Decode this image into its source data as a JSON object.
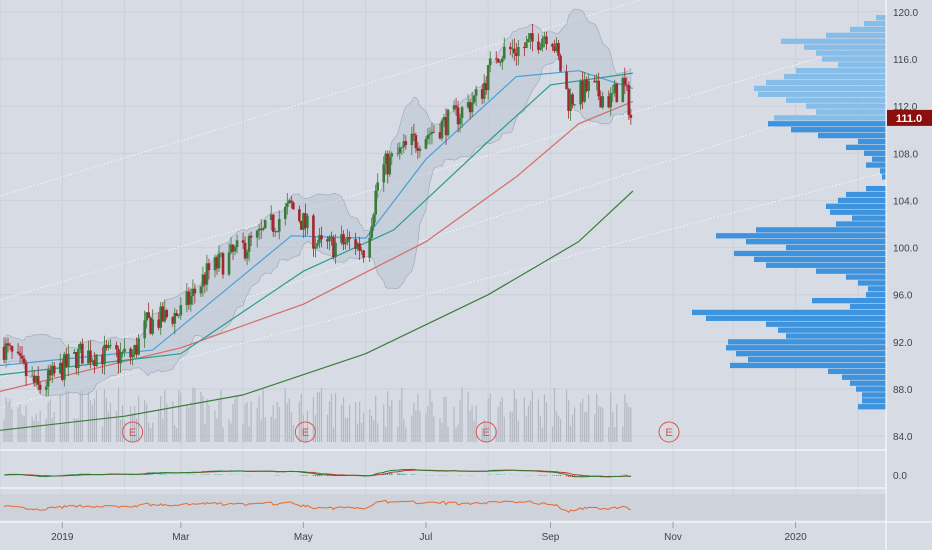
{
  "chart_data": {
    "type": "candlestick",
    "price_axis": {
      "ticks": [
        "84.0",
        "88.0",
        "92.0",
        "96.0",
        "100.0",
        "104.0",
        "108.0",
        "112.0",
        "116.0",
        "120.0"
      ],
      "range": [
        83,
        121
      ]
    },
    "last_price": {
      "label": "111.0",
      "value": 111.0,
      "color": "#8b0f0f"
    },
    "x_axis": {
      "labels": [
        "2019",
        "Mar",
        "May",
        "Jul",
        "Sep",
        "Nov",
        "2020"
      ],
      "range": [
        "2018-12-01",
        "2020-02-15"
      ]
    },
    "earnings_markers": {
      "label": "E",
      "dates": [
        "2019-02-05",
        "2019-05-02",
        "2019-07-31",
        "2019-10-30"
      ]
    },
    "price_anchors": [
      {
        "date": "2018-12-01",
        "close": 92.0
      },
      {
        "date": "2018-12-20",
        "close": 88.0
      },
      {
        "date": "2019-01-10",
        "close": 91.0
      },
      {
        "date": "2019-02-05",
        "close": 90.8
      },
      {
        "date": "2019-02-12",
        "close": 93.5
      },
      {
        "date": "2019-03-01",
        "close": 94.5
      },
      {
        "date": "2019-03-15",
        "close": 98.0
      },
      {
        "date": "2019-04-10",
        "close": 101.0
      },
      {
        "date": "2019-04-25",
        "close": 103.5
      },
      {
        "date": "2019-05-10",
        "close": 100.0
      },
      {
        "date": "2019-05-25",
        "close": 100.5
      },
      {
        "date": "2019-06-01",
        "close": 99.8
      },
      {
        "date": "2019-06-08",
        "close": 106.5
      },
      {
        "date": "2019-06-25",
        "close": 109.0
      },
      {
        "date": "2019-07-15",
        "close": 111.0
      },
      {
        "date": "2019-07-28",
        "close": 113.0
      },
      {
        "date": "2019-08-05",
        "close": 116.5
      },
      {
        "date": "2019-08-20",
        "close": 117.0
      },
      {
        "date": "2019-09-01",
        "close": 118.5
      },
      {
        "date": "2019-09-10",
        "close": 112.5
      },
      {
        "date": "2019-09-20",
        "close": 113.5
      },
      {
        "date": "2019-10-01",
        "close": 112.5
      },
      {
        "date": "2019-10-07",
        "close": 114.0
      },
      {
        "date": "2019-10-12",
        "close": 111.0
      }
    ],
    "moving_averages": [
      {
        "color": "#d66a6a",
        "points": [
          [
            "2018-12-01",
            87.8
          ],
          [
            "2019-03-01",
            91.5
          ],
          [
            "2019-05-01",
            95.2
          ],
          [
            "2019-07-01",
            100.5
          ],
          [
            "2019-08-15",
            106.0
          ],
          [
            "2019-09-15",
            110.5
          ],
          [
            "2019-10-12",
            112.4
          ]
        ]
      },
      {
        "color": "#3e7d3e",
        "points": [
          [
            "2018-12-01",
            84.5
          ],
          [
            "2019-02-01",
            85.7
          ],
          [
            "2019-04-01",
            87.5
          ],
          [
            "2019-06-01",
            91.0
          ],
          [
            "2019-08-01",
            96.0
          ],
          [
            "2019-09-15",
            100.5
          ],
          [
            "2019-10-12",
            104.8
          ]
        ]
      },
      {
        "color": "#4aa0d8",
        "points": [
          [
            "2018-12-01",
            90.0
          ],
          [
            "2019-02-15",
            91.3
          ],
          [
            "2019-04-25",
            101.0
          ],
          [
            "2019-06-01",
            100.8
          ],
          [
            "2019-07-01",
            107.5
          ],
          [
            "2019-08-15",
            114.5
          ],
          [
            "2019-09-15",
            115.0
          ],
          [
            "2019-10-12",
            113.5
          ]
        ]
      },
      {
        "color": "#2a9d8f",
        "points": [
          [
            "2018-12-01",
            89.2
          ],
          [
            "2019-03-01",
            91.0
          ],
          [
            "2019-05-01",
            98.0
          ],
          [
            "2019-06-15",
            101.5
          ],
          [
            "2019-08-01",
            109.0
          ],
          [
            "2019-09-01",
            113.8
          ],
          [
            "2019-10-12",
            114.8
          ]
        ]
      }
    ],
    "volume_profile_rows": [
      {
        "price": 119.5,
        "len": 10
      },
      {
        "price": 119.0,
        "len": 22
      },
      {
        "price": 118.5,
        "len": 36
      },
      {
        "price": 118.0,
        "len": 60
      },
      {
        "price": 117.5,
        "len": 105
      },
      {
        "price": 117.0,
        "len": 82
      },
      {
        "price": 116.5,
        "len": 70
      },
      {
        "price": 116.0,
        "len": 64
      },
      {
        "price": 115.5,
        "len": 48
      },
      {
        "price": 115.0,
        "len": 90
      },
      {
        "price": 114.5,
        "len": 102
      },
      {
        "price": 114.0,
        "len": 120
      },
      {
        "price": 113.5,
        "len": 132
      },
      {
        "price": 113.0,
        "len": 128
      },
      {
        "price": 112.5,
        "len": 100
      },
      {
        "price": 112.0,
        "len": 80
      },
      {
        "price": 111.5,
        "len": 70
      },
      {
        "price": 111.0,
        "len": 112
      },
      {
        "price": 110.5,
        "len": 118
      },
      {
        "price": 110.0,
        "len": 95
      },
      {
        "price": 109.5,
        "len": 68
      },
      {
        "price": 109.0,
        "len": 28
      },
      {
        "price": 108.5,
        "len": 40
      },
      {
        "price": 108.0,
        "len": 22
      },
      {
        "price": 107.5,
        "len": 14
      },
      {
        "price": 107.0,
        "len": 20
      },
      {
        "price": 106.5,
        "len": 6
      },
      {
        "price": 106.0,
        "len": 4
      },
      {
        "price": 105.0,
        "len": 20
      },
      {
        "price": 104.5,
        "len": 40
      },
      {
        "price": 104.0,
        "len": 48
      },
      {
        "price": 103.5,
        "len": 60
      },
      {
        "price": 103.0,
        "len": 56
      },
      {
        "price": 102.5,
        "len": 34
      },
      {
        "price": 102.0,
        "len": 50
      },
      {
        "price": 101.5,
        "len": 130
      },
      {
        "price": 101.0,
        "len": 170
      },
      {
        "price": 100.5,
        "len": 140
      },
      {
        "price": 100.0,
        "len": 100
      },
      {
        "price": 99.5,
        "len": 152
      },
      {
        "price": 99.0,
        "len": 132
      },
      {
        "price": 98.5,
        "len": 120
      },
      {
        "price": 98.0,
        "len": 70
      },
      {
        "price": 97.5,
        "len": 40
      },
      {
        "price": 97.0,
        "len": 28
      },
      {
        "price": 96.5,
        "len": 18
      },
      {
        "price": 96.0,
        "len": 20
      },
      {
        "price": 95.5,
        "len": 74
      },
      {
        "price": 95.0,
        "len": 36
      },
      {
        "price": 94.5,
        "len": 194
      },
      {
        "price": 94.0,
        "len": 180
      },
      {
        "price": 93.5,
        "len": 120
      },
      {
        "price": 93.0,
        "len": 108
      },
      {
        "price": 92.5,
        "len": 100
      },
      {
        "price": 92.0,
        "len": 158
      },
      {
        "price": 91.5,
        "len": 160
      },
      {
        "price": 91.0,
        "len": 150
      },
      {
        "price": 90.5,
        "len": 138
      },
      {
        "price": 90.0,
        "len": 156
      },
      {
        "price": 89.5,
        "len": 58
      },
      {
        "price": 89.0,
        "len": 44
      },
      {
        "price": 88.5,
        "len": 36
      },
      {
        "price": 88.0,
        "len": 30
      },
      {
        "price": 87.5,
        "len": 24
      },
      {
        "price": 87.0,
        "len": 24
      },
      {
        "price": 86.5,
        "len": 28
      }
    ],
    "volume_profile_split_price": 111.0,
    "macd": {
      "zero_label": "0.0"
    },
    "colors": {
      "background": "#d7dbe3",
      "up": "#3a7a3a",
      "down": "#a3282d",
      "bollinger_fill": "#b9c4d3",
      "profile_upper": "#86bde9",
      "profile_lower": "#3d93dd",
      "volume": "#b3b8c2",
      "rsi_line": "#e66a2c"
    }
  }
}
